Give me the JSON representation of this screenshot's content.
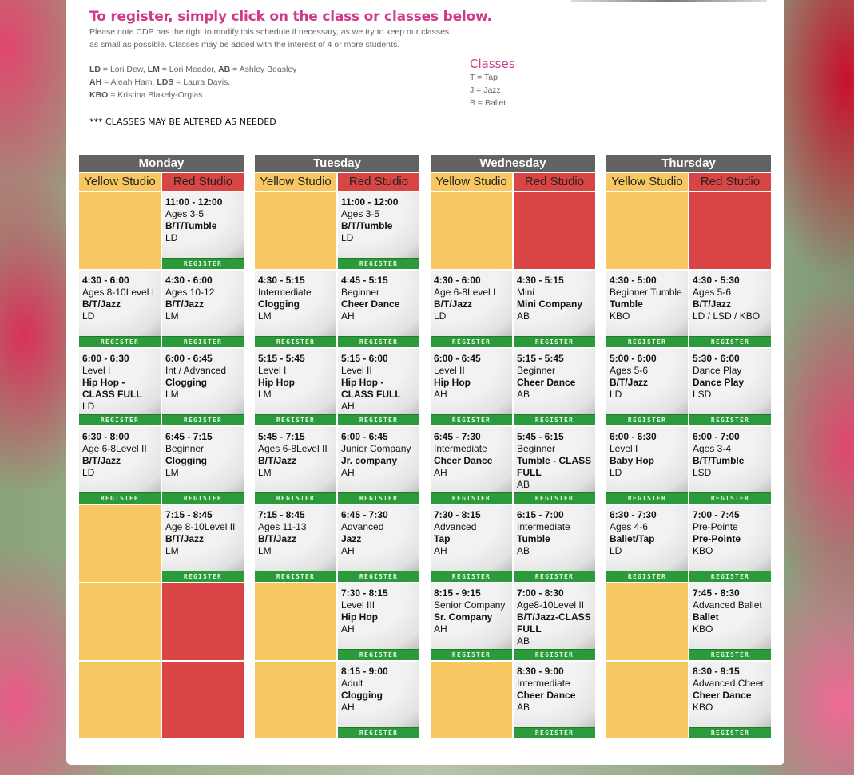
{
  "header": {
    "title": "To register, simply click on the class or classes below.",
    "note": "Please note CDP has the right to modify this schedule if necessary, as we try to keep our classes as small as possible. Classes may be added with the interest of 4 or more students.",
    "instructors": [
      [
        {
          "code": "LD",
          "name": " = Lori Dew, "
        },
        {
          "code": "LM",
          "name": " = Lori Meador, "
        },
        {
          "code": "AB",
          "name": " = Ashley Beasley"
        }
      ],
      [
        {
          "code": "AH",
          "name": " = Aleah Ham, "
        },
        {
          "code": "LDS",
          "name": " = Laura Davis,"
        }
      ],
      [
        {
          "code": "KBO",
          "name": " = Kristina Blakely-Orgias"
        }
      ]
    ],
    "altered": "*** CLASSES MAY BE ALTERED AS NEEDED",
    "classes_heading": "Classes",
    "classes_key": [
      "T = Tap",
      "J = Jazz",
      "B = Ballet"
    ]
  },
  "studios": {
    "yellow": "Yellow Studio",
    "red": "Red Studio"
  },
  "register_label": "REGISTER",
  "colors": {
    "yellow": "#f7c862",
    "red": "#d94545",
    "register": "#2a9a3a",
    "day_header": "#636363",
    "title": "#d03a8a"
  },
  "days": [
    {
      "name": "Monday",
      "rows": [
        [
          null,
          [
            "11:00 - 12:00",
            "Ages 3-5",
            "B/T/Tumble",
            "LD"
          ]
        ],
        [
          [
            "4:30 - 6:00",
            "Ages 8-10Level I",
            "B/T/Jazz",
            "LD"
          ],
          [
            "4:30 - 6:00",
            "Ages 10-12",
            "B/T/Jazz",
            "LM"
          ]
        ],
        [
          [
            "6:00 - 6:30",
            "Level I",
            "Hip Hop - CLASS FULL",
            "LD"
          ],
          [
            "6:00 - 6:45",
            "Int / Advanced",
            "Clogging",
            "LM"
          ]
        ],
        [
          [
            "6:30 - 8:00",
            "Age 6-8Level II",
            "B/T/Jazz",
            "LD"
          ],
          [
            "6:45 - 7:15",
            "Beginner",
            "Clogging",
            "LM"
          ]
        ],
        [
          null,
          [
            "7:15 - 8:45",
            "Age 8-10Level II",
            "B/T/Jazz",
            "LM"
          ]
        ],
        [
          null,
          null
        ],
        [
          null,
          null
        ]
      ]
    },
    {
      "name": "Tuesday",
      "rows": [
        [
          null,
          [
            "11:00 - 12:00",
            "Ages 3-5",
            "B/T/Tumble",
            "LD"
          ]
        ],
        [
          [
            "4:30 - 5:15",
            "Intermediate",
            "Clogging",
            "LM"
          ],
          [
            "4:45 - 5:15",
            "Beginner",
            "Cheer Dance",
            "AH"
          ]
        ],
        [
          [
            "5:15 - 5:45",
            "Level I",
            "Hip Hop",
            "LM"
          ],
          [
            "5:15 - 6:00",
            "Level II",
            "Hip Hop - CLASS FULL",
            "AH"
          ]
        ],
        [
          [
            "5:45 - 7:15",
            "Ages 6-8Level II",
            "B/T/Jazz",
            "LM"
          ],
          [
            "6:00 - 6:45",
            "Junior Company",
            "Jr. company",
            "AH"
          ]
        ],
        [
          [
            "7:15 - 8:45",
            "Ages 11-13",
            "B/T/Jazz",
            "LM"
          ],
          [
            "6:45 - 7:30",
            "Advanced",
            "Jazz",
            "AH"
          ]
        ],
        [
          null,
          [
            "7:30 - 8:15",
            "Level III",
            "Hip Hop",
            "AH"
          ]
        ],
        [
          null,
          [
            "8:15 - 9:00",
            "Adult",
            "Clogging",
            "AH"
          ]
        ]
      ]
    },
    {
      "name": "Wednesday",
      "rows": [
        [
          null,
          null
        ],
        [
          [
            "4:30 - 6:00",
            "Age 6-8Level I",
            "B/T/Jazz",
            "LD"
          ],
          [
            "4:30 - 5:15",
            "Mini",
            "Mini Company",
            "AB"
          ]
        ],
        [
          [
            "6:00 - 6:45",
            "Level II",
            "Hip Hop",
            "AH"
          ],
          [
            "5:15 - 5:45",
            "Beginner",
            "Cheer Dance",
            "AB"
          ]
        ],
        [
          [
            "6:45 - 7:30",
            "Intermediate",
            "Cheer Dance",
            "AH"
          ],
          [
            "5:45 - 6:15",
            "Beginner",
            "Tumble - CLASS FULL",
            "AB"
          ]
        ],
        [
          [
            "7:30 - 8:15",
            "Advanced",
            "Tap",
            "AH"
          ],
          [
            "6:15 - 7:00",
            "Intermediate",
            "Tumble",
            "AB"
          ]
        ],
        [
          [
            "8:15 - 9:15",
            "Senior Company",
            "Sr. Company",
            "AH"
          ],
          [
            "7:00 - 8:30",
            "Age8-10Level II",
            "B/T/Jazz-CLASS FULL",
            "AB"
          ]
        ],
        [
          null,
          [
            "8:30 - 9:00",
            "Intermediate",
            "Cheer Dance",
            "AB"
          ]
        ]
      ]
    },
    {
      "name": "Thursday",
      "rows": [
        [
          null,
          null
        ],
        [
          [
            "4:30 - 5:00",
            "Beginner Tumble",
            "Tumble",
            "KBO"
          ],
          [
            "4:30 - 5:30",
            "Ages 5-6",
            "B/T/Jazz",
            "LD / LSD / KBO"
          ]
        ],
        [
          [
            "5:00 - 6:00",
            "Ages 5-6",
            "B/T/Jazz",
            "LD"
          ],
          [
            "5:30 - 6:00",
            "Dance Play",
            "Dance Play",
            "LSD"
          ]
        ],
        [
          [
            "6:00 - 6:30",
            "Level I",
            "Baby Hop",
            "LD"
          ],
          [
            "6:00 - 7:00",
            "Ages 3-4",
            "B/T/Tumble",
            "LSD"
          ]
        ],
        [
          [
            "6:30 - 7:30",
            "Ages 4-6",
            "Ballet/Tap",
            "LD"
          ],
          [
            "7:00 - 7:45",
            "Pre-Pointe",
            "Pre-Pointe",
            "KBO"
          ]
        ],
        [
          null,
          [
            "7:45 - 8:30",
            "Advanced Ballet",
            "Ballet",
            "KBO"
          ]
        ],
        [
          null,
          [
            "8:30 - 9:15",
            "Advanced Cheer",
            "Cheer Dance",
            "KBO"
          ]
        ]
      ]
    }
  ]
}
